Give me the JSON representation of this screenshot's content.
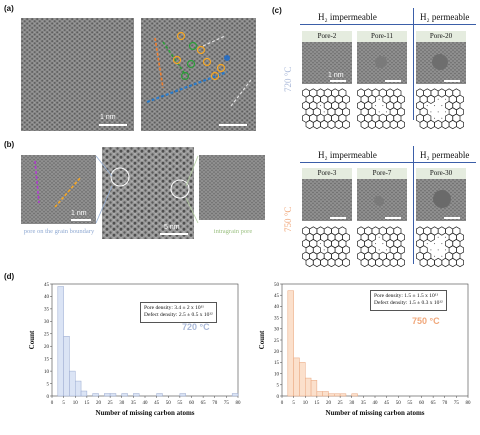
{
  "panel_labels": {
    "a": "(a)",
    "b": "(b)",
    "c": "(c)",
    "d": "(d)"
  },
  "scales": {
    "a_left": "1 nm",
    "b_left": "1 nm",
    "b_center": "5 nm",
    "c_first": "1 nm"
  },
  "captions": {
    "grain_boundary": "pore on the grain boundary",
    "intragrain": "intragrain pore"
  },
  "panel_c": {
    "rows": [
      {
        "temperature": "720 °C",
        "temperature_color": "#a9b8d8",
        "impermeable_header": "H₂ impermeable",
        "permeable_header": "H₂ permeable",
        "pores": [
          "Pore-2",
          "Pore-11",
          "Pore-20"
        ]
      },
      {
        "temperature": "750 °C",
        "temperature_color": "#f0a77a",
        "impermeable_header": "H₂ impermeable",
        "permeable_header": "H₂ permeable",
        "pores": [
          "Pore-3",
          "Pore-7",
          "Pore-30"
        ]
      }
    ]
  },
  "chart_data": [
    {
      "type": "bar",
      "xlabel": "Number of missing carbon atoms",
      "ylabel": "Count",
      "xlim": [
        0,
        80
      ],
      "ylim": [
        0,
        45
      ],
      "xticks": [
        0,
        5,
        10,
        15,
        20,
        25,
        30,
        35,
        40,
        45,
        50,
        55,
        60,
        65,
        70,
        75,
        80
      ],
      "yticks": [
        0,
        5,
        10,
        15,
        20,
        25,
        30,
        35,
        40,
        45
      ],
      "bin_width": 2.5,
      "bins": [
        0,
        2.5,
        5,
        7.5,
        10,
        12.5,
        15,
        17.5,
        20,
        22.5,
        25,
        27.5,
        30,
        32.5,
        35,
        37.5,
        40,
        42.5,
        45,
        47.5,
        50,
        52.5,
        55,
        57.5,
        60,
        62.5,
        65,
        67.5,
        70,
        72.5,
        75,
        77.5
      ],
      "values": [
        0,
        44,
        24,
        10,
        6,
        2,
        0,
        1,
        0,
        1,
        1,
        0,
        1,
        0,
        1,
        0,
        0,
        0,
        1,
        0,
        0,
        0,
        1,
        0,
        0,
        0,
        0,
        0,
        0,
        0,
        0,
        1
      ],
      "bar_color": "#dbe4f5",
      "edge_color": "#9aaad0",
      "annotation_lines": [
        "Pore density: 3.4 ± 2 x 10¹¹",
        "Defect density: 2.5 ± 0.5 x 10¹²"
      ],
      "temperature_label": "720 °C",
      "temperature_color": "#a9b8d8"
    },
    {
      "type": "bar",
      "xlabel": "Number of missing carbon atoms",
      "ylabel": "Count",
      "xlim": [
        0,
        80
      ],
      "ylim": [
        0,
        50
      ],
      "xticks": [
        0,
        5,
        10,
        15,
        20,
        25,
        30,
        35,
        40,
        45,
        50,
        55,
        60,
        65,
        70,
        75,
        80
      ],
      "yticks": [
        0,
        5,
        10,
        15,
        20,
        25,
        30,
        35,
        40,
        45,
        50
      ],
      "bin_width": 2.5,
      "bins": [
        0,
        2.5,
        5,
        7.5,
        10,
        12.5,
        15,
        17.5,
        20,
        22.5,
        25,
        27.5,
        30,
        32.5,
        35,
        37.5,
        40,
        42.5,
        45,
        47.5,
        50,
        52.5,
        55,
        57.5,
        60,
        62.5,
        65,
        67.5,
        70,
        72.5,
        75,
        77.5
      ],
      "values": [
        0,
        47,
        17,
        15,
        8,
        7,
        2,
        2,
        1,
        1,
        1,
        0,
        1,
        0,
        0,
        0,
        0,
        0,
        0,
        0,
        0,
        0,
        0,
        0,
        0,
        0,
        0,
        0,
        0,
        0,
        0,
        0
      ],
      "bar_color": "#fbe0cc",
      "edge_color": "#e9a57c",
      "annotation_lines": [
        "Pore density: 1.5 ± 1.5 x 10¹¹",
        "Defect density: 1.5 ± 0.3 x 10¹²"
      ],
      "temperature_label": "750 °C",
      "temperature_color": "#f0a77a"
    }
  ]
}
